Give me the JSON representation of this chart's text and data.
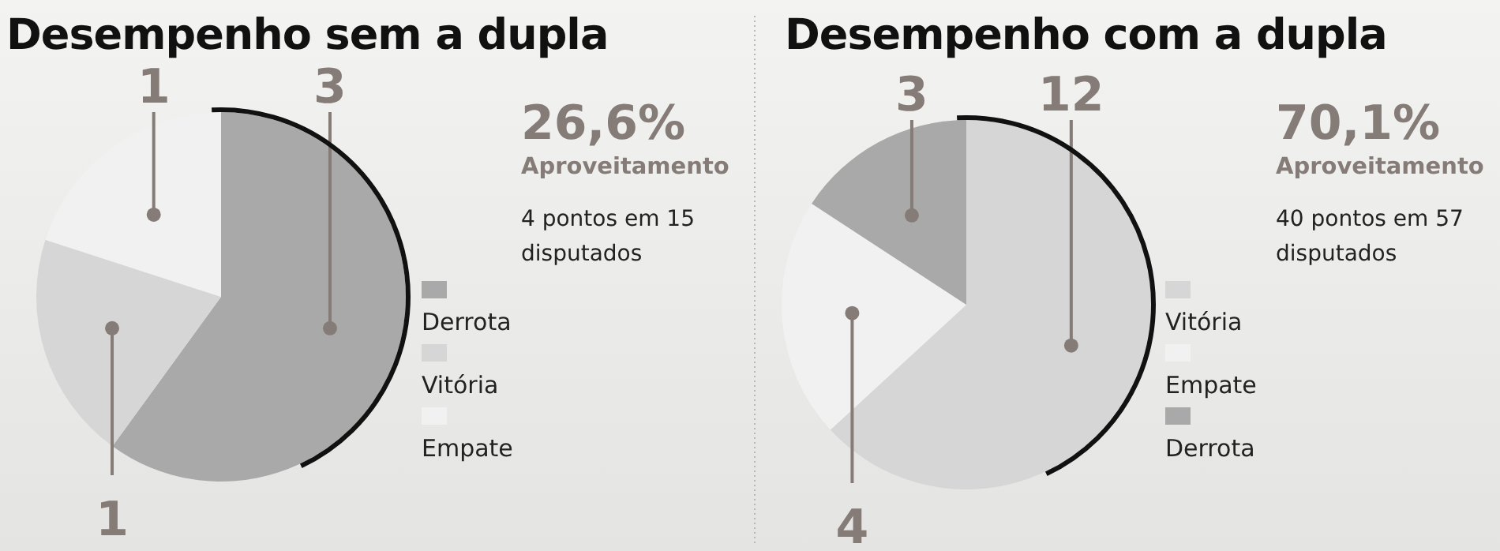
{
  "chart_data": [
    {
      "type": "pie",
      "title": "Desempenho sem a dupla",
      "categories": [
        "Derrota",
        "Vitória",
        "Empate"
      ],
      "values": [
        3,
        1,
        1
      ],
      "colors": [
        "#a9a9a9",
        "#d6d6d6",
        "#f1f1f1"
      ],
      "data_labels": true,
      "legend": "right",
      "annotations": [
        "26,6%",
        "Aproveitamento",
        "4 pontos em 15 disputados"
      ]
    },
    {
      "type": "pie",
      "title": "Desempenho com a dupla",
      "categories": [
        "Vitória",
        "Empate",
        "Derrota"
      ],
      "values": [
        12,
        4,
        3
      ],
      "colors": [
        "#d6d6d6",
        "#f1f1f1",
        "#a9a9a9"
      ],
      "data_labels": true,
      "legend": "right",
      "annotations": [
        "70,1%",
        "Aproveitamento",
        "40 pontos em 57 disputados"
      ]
    }
  ]
}
